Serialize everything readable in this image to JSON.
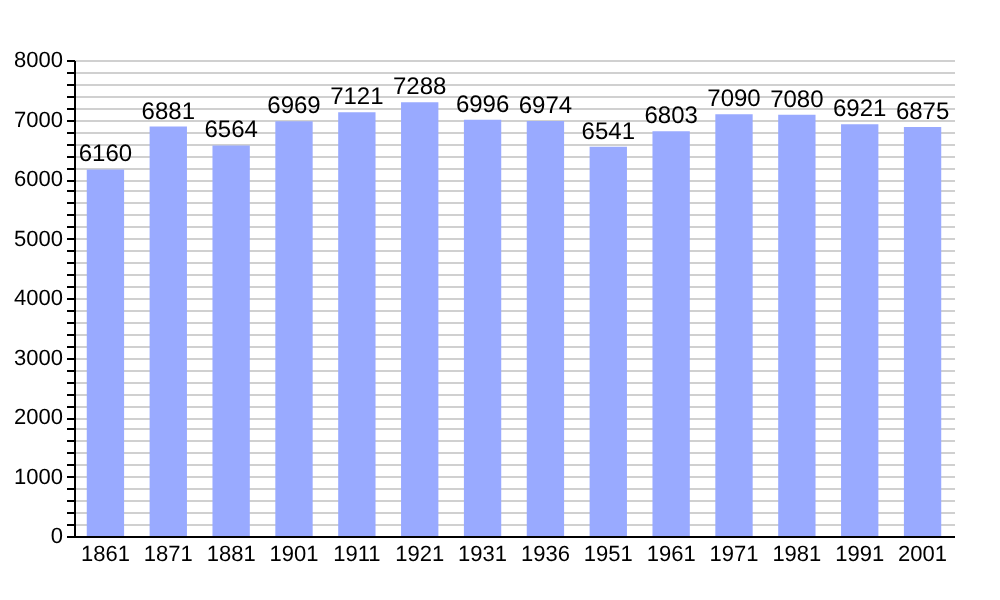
{
  "chart_data": {
    "type": "bar",
    "categories": [
      "1861",
      "1871",
      "1881",
      "1901",
      "1911",
      "1921",
      "1931",
      "1936",
      "1951",
      "1961",
      "1971",
      "1981",
      "1991",
      "2001"
    ],
    "values": [
      6160,
      6881,
      6564,
      6969,
      7121,
      7288,
      6996,
      6974,
      6541,
      6803,
      7090,
      7080,
      6921,
      6875
    ],
    "color": "#99aaff",
    "ylim": [
      0,
      8000
    ],
    "yticks": [
      0,
      {
        "value": 200,
        "label": null
      },
      {
        "value": 400,
        "label": null
      },
      {
        "value": 600,
        "label": null
      },
      {
        "value": 800,
        "label": null
      },
      1000,
      {
        "value": 1200,
        "label": null
      },
      {
        "value": 1400,
        "label": null
      },
      {
        "value": 1600,
        "label": null
      },
      {
        "value": 1800,
        "label": null
      },
      2000,
      {
        "value": 2200,
        "label": null
      },
      {
        "value": 2400,
        "label": null
      },
      {
        "value": 2600,
        "label": null
      },
      {
        "value": 2800,
        "label": null
      },
      3000,
      {
        "value": 3200,
        "label": null
      },
      {
        "value": 3400,
        "label": null
      },
      {
        "value": 3600,
        "label": null
      },
      {
        "value": 3800,
        "label": null
      },
      4000,
      {
        "value": 4200,
        "label": null
      },
      {
        "value": 4400,
        "label": null
      },
      {
        "value": 4600,
        "label": null
      },
      {
        "value": 4800,
        "label": null
      },
      5000,
      {
        "value": 5200,
        "label": null
      },
      {
        "value": 5400,
        "label": null
      },
      {
        "value": 5600,
        "label": null
      },
      {
        "value": 5800,
        "label": null
      },
      6000,
      {
        "value": 6200,
        "label": null
      },
      {
        "value": 6400,
        "label": null
      },
      {
        "value": 6600,
        "label": null
      },
      {
        "value": 6800,
        "label": null
      },
      7000,
      {
        "value": 7200,
        "label": null
      },
      {
        "value": 7400,
        "label": null
      },
      {
        "value": 7600,
        "label": null
      },
      {
        "value": 7800,
        "label": null
      },
      8000
    ],
    "grid": "y",
    "data_labels": true
  }
}
